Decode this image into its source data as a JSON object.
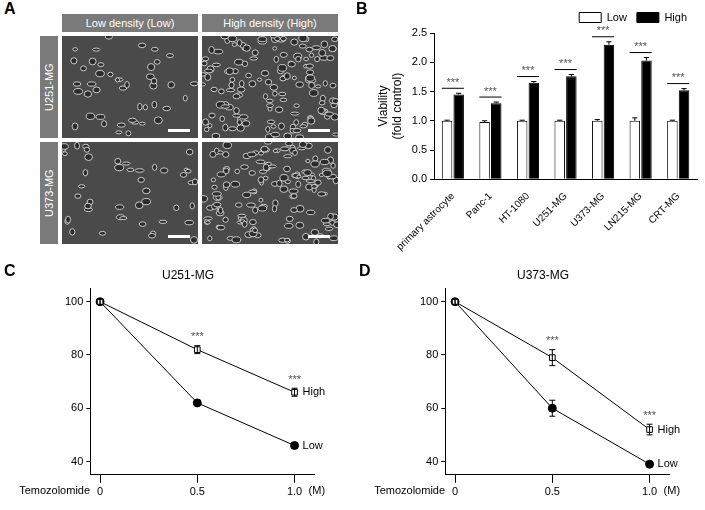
{
  "panel_a": {
    "panel": "A",
    "columns": [
      "Low density (Low)",
      "High density (High)"
    ],
    "rows": [
      "U251-MG",
      "U373-MG"
    ]
  },
  "chart_data": [
    {
      "panel": "B",
      "type": "bar",
      "y_label": [
        "Viability",
        "(fold control)"
      ],
      "categories": [
        "primary astrocyte",
        "Panc-1",
        "HT-1080",
        "U251-MG",
        "U373-MG",
        "LN215-MG",
        "CRT-MG"
      ],
      "series": [
        {
          "name": "Low",
          "color": "#ffffff",
          "values": [
            1.0,
            0.98,
            1.0,
            1.0,
            1.0,
            1.0,
            1.0
          ],
          "errors": [
            0.01,
            0.02,
            0.01,
            0.01,
            0.02,
            0.05,
            0.01
          ]
        },
        {
          "name": "High",
          "color": "#000000",
          "values": [
            1.45,
            1.3,
            1.65,
            1.76,
            2.3,
            2.03,
            1.52
          ],
          "errors": [
            0.02,
            0.02,
            0.02,
            0.03,
            0.05,
            0.05,
            0.03
          ]
        }
      ],
      "annotations": [
        "***",
        "***",
        "***",
        "***",
        "***",
        "***",
        "***"
      ],
      "ylim": [
        0,
        2.5
      ],
      "yticks": [
        {
          "value": 0,
          "label": "0.0"
        },
        0.5,
        {
          "value": 1,
          "label": "1.0"
        },
        1.5,
        {
          "value": 2,
          "label": "2.0"
        },
        2.5
      ],
      "grid": false,
      "legend": "top right"
    },
    {
      "panel": "C",
      "type": "line",
      "title": "U251-MG",
      "x_label": "Temozolomide",
      "x_unit": "(M)",
      "x": [
        0,
        0.5,
        1
      ],
      "series": [
        {
          "name": "High",
          "color": "#000000",
          "marker": "open_square",
          "values": [
            100,
            82,
            66
          ],
          "errors": [
            1,
            1.5,
            1.5
          ]
        },
        {
          "name": "Low",
          "color": "#000000",
          "marker": "circle",
          "values": [
            100,
            62,
            46
          ],
          "errors": [
            1,
            1,
            1
          ]
        }
      ],
      "annotations": [
        {
          "x": 0.5,
          "text": "***"
        },
        {
          "x": 1,
          "text": "***"
        }
      ],
      "xlim": [
        -0.05,
        1.1
      ],
      "xticks": [
        0,
        0.5,
        {
          "value": 1,
          "label": "1.0"
        }
      ],
      "ylim": [
        35,
        105
      ],
      "yticks": [
        40,
        60,
        80,
        100
      ],
      "grid": false
    },
    {
      "panel": "D",
      "type": "line",
      "title": "U373-MG",
      "x_label": "Temozolomide",
      "x_unit": "(M)",
      "x": [
        0,
        0.5,
        1
      ],
      "series": [
        {
          "name": "High",
          "color": "#000000",
          "marker": "open_square",
          "values": [
            100,
            79,
            52
          ],
          "errors": [
            1,
            3,
            2
          ]
        },
        {
          "name": "Low",
          "color": "#000000",
          "marker": "circle",
          "values": [
            100,
            60,
            39
          ],
          "errors": [
            1,
            3,
            1
          ]
        }
      ],
      "annotations": [
        {
          "x": 0.5,
          "text": "***"
        },
        {
          "x": 1,
          "text": "***"
        }
      ],
      "xlim": [
        -0.05,
        1.1
      ],
      "xticks": [
        0,
        0.5,
        {
          "value": 1,
          "label": "1.0"
        }
      ],
      "ylim": [
        35,
        105
      ],
      "yticks": [
        40,
        60,
        80,
        100
      ],
      "grid": false
    }
  ]
}
